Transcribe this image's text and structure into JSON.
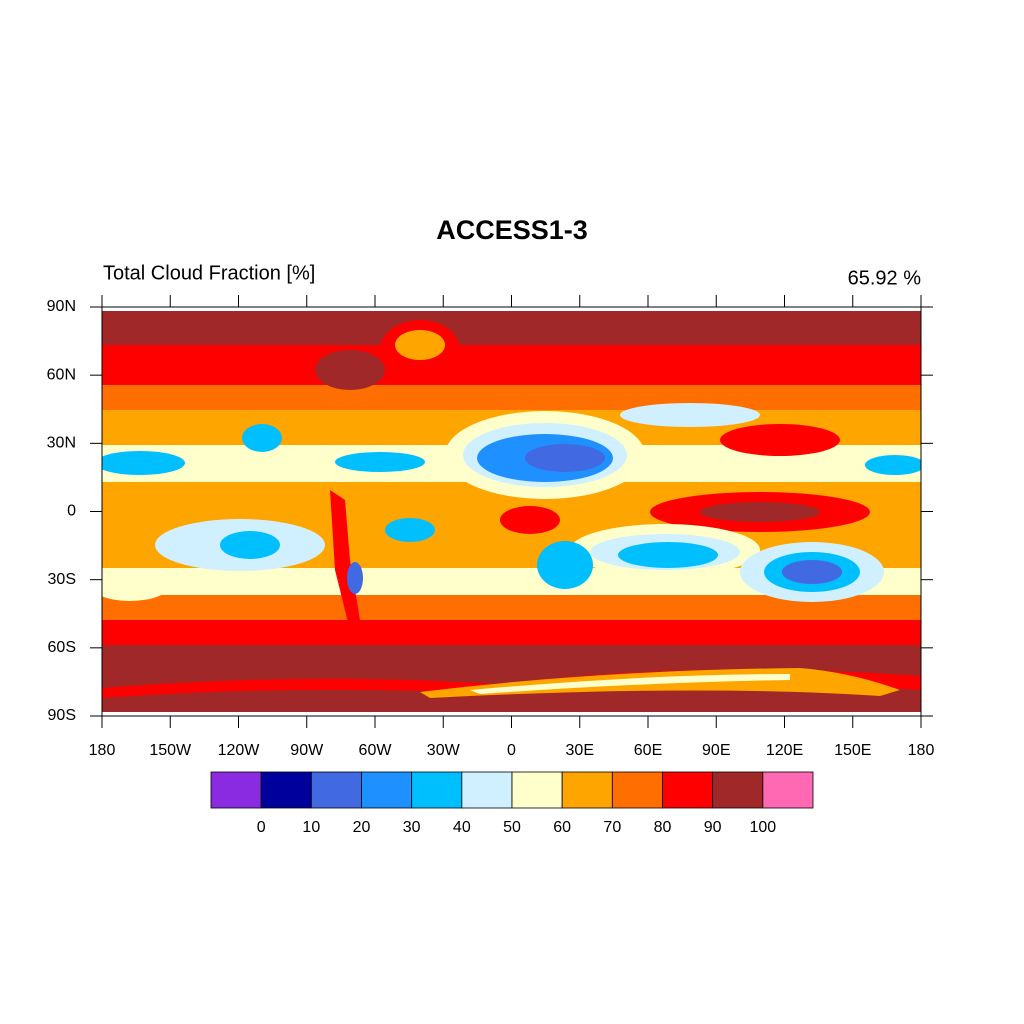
{
  "map": {
    "title": "ACCESS1-3",
    "subtitle_left": "Total Cloud Fraction [%]",
    "subtitle_right": "65.92 %",
    "xlim": [
      -180,
      180
    ],
    "ylim": [
      -90,
      90
    ],
    "xticks": [
      {
        "value": -180,
        "label": "180"
      },
      {
        "value": -150,
        "label": "150W"
      },
      {
        "value": -120,
        "label": "120W"
      },
      {
        "value": -90,
        "label": "90W"
      },
      {
        "value": -60,
        "label": "60W"
      },
      {
        "value": -30,
        "label": "30W"
      },
      0,
      {
        "value": 30,
        "label": "30E"
      },
      {
        "value": 60,
        "label": "60E"
      },
      {
        "value": 90,
        "label": "90E"
      },
      {
        "value": 120,
        "label": "120E"
      },
      {
        "value": 150,
        "label": "150E"
      },
      {
        "value": 180,
        "label": "180"
      }
    ],
    "yticks": [
      {
        "value": 90,
        "label": "90N"
      },
      {
        "value": 60,
        "label": "60N"
      },
      {
        "value": 30,
        "label": "30N"
      },
      0,
      {
        "value": -30,
        "label": "30S"
      },
      {
        "value": -60,
        "label": "60S"
      },
      {
        "value": -90,
        "label": "90S"
      }
    ],
    "colorbar": {
      "levels": [
        0,
        10,
        20,
        30,
        40,
        50,
        60,
        70,
        80,
        90,
        100
      ],
      "colors": [
        "#8a2be2",
        "#00009c",
        "#4169e1",
        "#1e90ff",
        "#00bfff",
        "#d0f0ff",
        "#ffffcc",
        "#ffa500",
        "#ff6e00",
        "#ff0000",
        "#a02828",
        "#ff69b4"
      ]
    }
  }
}
